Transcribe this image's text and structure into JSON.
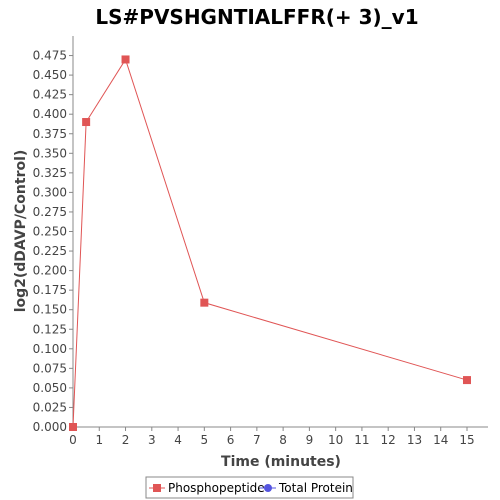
{
  "chart_data": {
    "type": "line",
    "title": "LS#PVSHGNTIALFFR(+ 3)_v1",
    "xlabel": "Time (minutes)",
    "ylabel": "log2(dDAVP/Control)",
    "xlim": [
      0,
      15.8
    ],
    "ylim": [
      0,
      0.5
    ],
    "xticks": [
      0,
      1,
      2,
      3,
      4,
      5,
      6,
      7,
      8,
      9,
      10,
      11,
      12,
      13,
      14,
      15
    ],
    "yticks": [
      0.0,
      0.025,
      0.05,
      0.075,
      0.1,
      0.125,
      0.15,
      0.175,
      0.2,
      0.225,
      0.25,
      0.275,
      0.3,
      0.325,
      0.35,
      0.375,
      0.4,
      0.425,
      0.45,
      0.475
    ],
    "ytick_format_decimals": 3,
    "grid": false,
    "legend_position": "bottom-center",
    "series": [
      {
        "name": "Phosphopeptide",
        "color": "#e05555",
        "marker": "square",
        "x": [
          0,
          0.5,
          2,
          5,
          15
        ],
        "y": [
          0.0,
          0.39,
          0.47,
          0.159,
          0.06
        ]
      },
      {
        "name": "Total Protein",
        "color": "#5555e0",
        "marker": "circle",
        "x": [],
        "y": []
      }
    ]
  }
}
